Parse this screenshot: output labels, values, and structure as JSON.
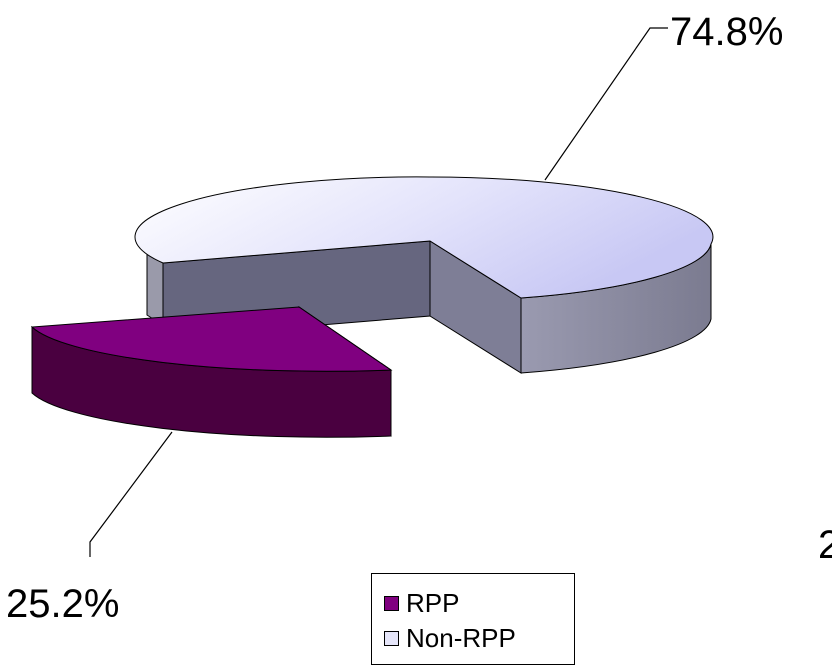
{
  "chart_data": {
    "type": "pie",
    "title": "",
    "style": "3d-exploded",
    "slices": [
      {
        "name": "RPP",
        "value": 25.2,
        "label": "25.2%",
        "color": "#800080"
      },
      {
        "name": "Non-RPP",
        "value": 74.8,
        "label": "74.8%",
        "color": "#e6e6fa"
      }
    ],
    "legend": {
      "placement": "bottom",
      "items": [
        {
          "label": "RPP",
          "color": "#800080"
        },
        {
          "label": "Non-RPP",
          "color": "#e6e6fa"
        }
      ]
    },
    "partial_text_at_right_edge": "2"
  }
}
